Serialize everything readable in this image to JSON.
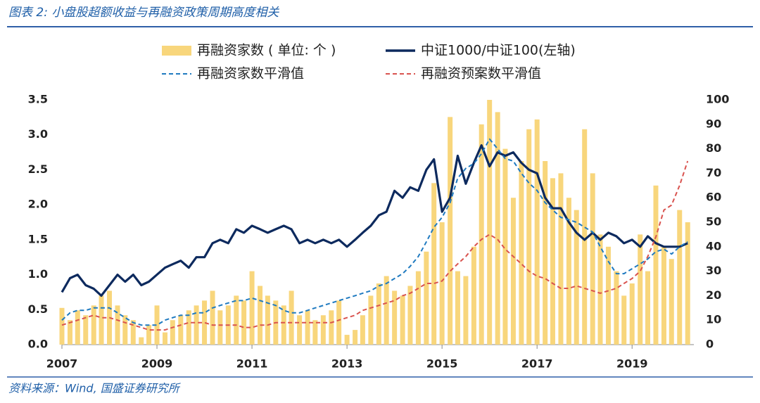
{
  "chart_data": {
    "type": "combo",
    "title": "图表 2:  小盘股超额收益与再融资政策周期高度相关",
    "source": "资料来源：Wind, 国盛证券研究所",
    "x": [
      2007,
      2007.17,
      2007.33,
      2007.5,
      2007.67,
      2007.83,
      2008,
      2008.17,
      2008.33,
      2008.5,
      2008.67,
      2008.83,
      2009,
      2009.17,
      2009.33,
      2009.5,
      2009.67,
      2009.83,
      2010,
      2010.17,
      2010.33,
      2010.5,
      2010.67,
      2010.83,
      2011,
      2011.17,
      2011.33,
      2011.5,
      2011.67,
      2011.83,
      2012,
      2012.17,
      2012.33,
      2012.5,
      2012.67,
      2012.83,
      2013,
      2013.17,
      2013.33,
      2013.5,
      2013.67,
      2013.83,
      2014,
      2014.17,
      2014.33,
      2014.5,
      2014.67,
      2014.83,
      2015,
      2015.17,
      2015.33,
      2015.5,
      2015.67,
      2015.83,
      2016,
      2016.17,
      2016.33,
      2016.5,
      2016.67,
      2016.83,
      2017,
      2017.17,
      2017.33,
      2017.5,
      2017.67,
      2017.83,
      2018,
      2018.17,
      2018.33,
      2018.5,
      2018.67,
      2018.83,
      2019,
      2019.17,
      2019.33,
      2019.5,
      2019.67,
      2019.83,
      2020,
      2020.17
    ],
    "xlim": [
      2007,
      2020.3
    ],
    "xticks": [
      2007,
      2009,
      2011,
      2013,
      2015,
      2017,
      2019
    ],
    "ylim": [
      0,
      3.5
    ],
    "yticks": [
      {
        "value": 0,
        "label": "0.0"
      },
      0.5,
      {
        "value": 1,
        "label": "1.0"
      },
      1.5,
      {
        "value": 2,
        "label": "2.0"
      },
      2.5,
      {
        "value": 3,
        "label": "3.0"
      },
      3.5
    ],
    "y2lim": [
      0,
      100
    ],
    "y2ticks": [
      0,
      10,
      20,
      30,
      40,
      50,
      60,
      70,
      80,
      90,
      100
    ],
    "series": [
      {
        "name": "再融资家数 ( 单位: 个 )",
        "type": "bar",
        "axis": "y2",
        "color": "#f8d67c",
        "values": [
          15,
          10,
          14,
          12,
          16,
          20,
          22,
          16,
          12,
          10,
          3,
          8,
          16,
          5,
          10,
          12,
          14,
          16,
          18,
          22,
          14,
          16,
          20,
          18,
          30,
          24,
          20,
          18,
          16,
          22,
          12,
          14,
          10,
          12,
          14,
          18,
          4,
          6,
          12,
          20,
          25,
          28,
          22,
          20,
          24,
          30,
          38,
          66,
          50,
          93,
          30,
          28,
          40,
          90,
          100,
          95,
          80,
          60,
          75,
          88,
          92,
          75,
          68,
          70,
          60,
          55,
          88,
          70,
          45,
          40,
          30,
          20,
          25,
          45,
          30,
          65,
          40,
          35,
          55,
          50
        ]
      },
      {
        "name": "中证1000/中证100(左轴)",
        "type": "line",
        "axis": "y",
        "color": "#0d2a5e",
        "values": [
          0.75,
          0.95,
          1.0,
          0.85,
          0.8,
          0.7,
          0.85,
          1.0,
          0.9,
          1.0,
          0.85,
          0.9,
          1.0,
          1.1,
          1.15,
          1.2,
          1.1,
          1.25,
          1.25,
          1.45,
          1.5,
          1.45,
          1.65,
          1.6,
          1.7,
          1.65,
          1.6,
          1.65,
          1.7,
          1.65,
          1.45,
          1.5,
          1.45,
          1.5,
          1.45,
          1.5,
          1.4,
          1.5,
          1.6,
          1.7,
          1.85,
          1.9,
          2.2,
          2.1,
          2.25,
          2.2,
          2.5,
          2.65,
          1.9,
          2.1,
          2.7,
          2.3,
          2.6,
          2.85,
          2.55,
          2.75,
          2.7,
          2.75,
          2.6,
          2.5,
          2.45,
          2.1,
          1.95,
          1.95,
          1.75,
          1.6,
          1.5,
          1.6,
          1.5,
          1.6,
          1.55,
          1.45,
          1.5,
          1.4,
          1.55,
          1.45,
          1.4,
          1.4,
          1.4,
          1.45
        ]
      },
      {
        "name": "再融资家数平滑值",
        "type": "dash",
        "axis": "y2",
        "color": "#1f7ac0",
        "values": [
          10,
          13,
          14,
          14,
          15,
          15,
          15,
          13,
          11,
          9,
          8,
          8,
          8,
          10,
          11,
          12,
          12,
          13,
          13,
          15,
          16,
          17,
          18,
          18,
          19,
          18,
          17,
          16,
          14,
          13,
          13,
          14,
          15,
          16,
          17,
          18,
          19,
          20,
          21,
          22,
          24,
          25,
          27,
          29,
          32,
          36,
          42,
          48,
          52,
          58,
          68,
          72,
          74,
          78,
          84,
          80,
          76,
          75,
          70,
          66,
          63,
          58,
          55,
          52,
          51,
          50,
          48,
          46,
          40,
          34,
          29,
          29,
          31,
          33,
          35,
          38,
          39,
          37,
          40,
          42
        ]
      },
      {
        "name": "再融资预案数平滑值",
        "type": "dash",
        "axis": "y2",
        "color": "#d9534f",
        "values": [
          8,
          9,
          10,
          11,
          12,
          11,
          11,
          10,
          9,
          8,
          7,
          6,
          6,
          6,
          7,
          8,
          9,
          9,
          9,
          8,
          8,
          8,
          8,
          7,
          7,
          8,
          8,
          9,
          9,
          9,
          9,
          9,
          9,
          9,
          9,
          10,
          11,
          12,
          14,
          15,
          16,
          17,
          18,
          20,
          21,
          23,
          25,
          25,
          26,
          30,
          33,
          36,
          40,
          43,
          45,
          43,
          39,
          36,
          33,
          30,
          28,
          27,
          25,
          23,
          23,
          24,
          23,
          22,
          21,
          22,
          23,
          25,
          27,
          30,
          36,
          44,
          55,
          57,
          65,
          75
        ]
      }
    ]
  }
}
